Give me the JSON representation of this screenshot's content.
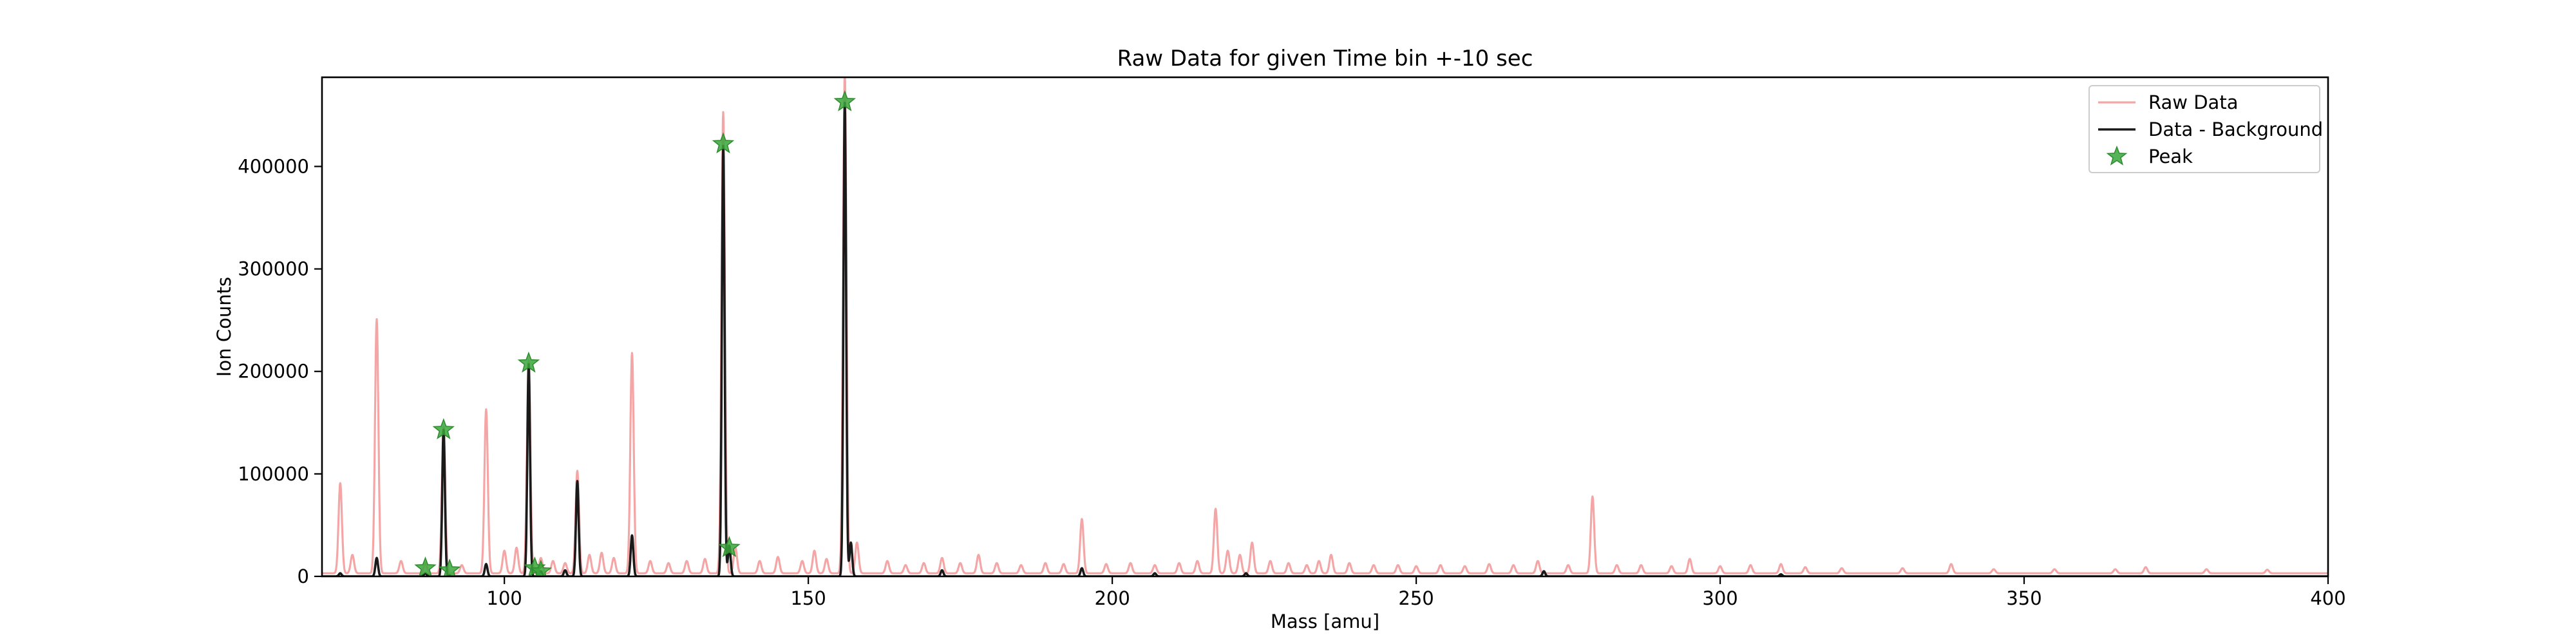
{
  "chart_data": {
    "type": "line",
    "title": "Raw Data for given Time bin +-10 sec",
    "xlabel": "Mass [amu]",
    "ylabel": "Ion Counts",
    "xlim": [
      70,
      400
    ],
    "ylim": [
      0,
      487000
    ],
    "xticks": [
      100,
      150,
      200,
      250,
      300,
      350,
      400
    ],
    "yticks": [
      0,
      100000,
      200000,
      300000,
      400000
    ],
    "grid": false,
    "legend_position": "top-right",
    "colors": {
      "raw": "#f4a6a6",
      "background_subtracted": "#1a1a1a",
      "peak": "#3aa63a"
    },
    "series": [
      {
        "name": "Raw Data",
        "style": "line",
        "baseline": 3000,
        "peaks": [
          [
            73,
            88000
          ],
          [
            75,
            18000
          ],
          [
            79,
            248000
          ],
          [
            83,
            12000
          ],
          [
            87,
            10000
          ],
          [
            90,
            143000
          ],
          [
            93,
            8000
          ],
          [
            97,
            160000
          ],
          [
            100,
            22000
          ],
          [
            102,
            25000
          ],
          [
            104,
            208000
          ],
          [
            106,
            15000
          ],
          [
            108,
            12000
          ],
          [
            110,
            10000
          ],
          [
            112,
            100000
          ],
          [
            114,
            18000
          ],
          [
            116,
            20000
          ],
          [
            118,
            15000
          ],
          [
            121,
            215000
          ],
          [
            124,
            12000
          ],
          [
            127,
            10000
          ],
          [
            130,
            12000
          ],
          [
            133,
            14000
          ],
          [
            136,
            450000
          ],
          [
            138,
            25000
          ],
          [
            142,
            12000
          ],
          [
            145,
            16000
          ],
          [
            149,
            12000
          ],
          [
            151,
            22000
          ],
          [
            153,
            14000
          ],
          [
            156,
            487000
          ],
          [
            158,
            30000
          ],
          [
            163,
            12000
          ],
          [
            166,
            8000
          ],
          [
            169,
            10000
          ],
          [
            172,
            15000
          ],
          [
            175,
            10000
          ],
          [
            178,
            18000
          ],
          [
            181,
            10000
          ],
          [
            185,
            8000
          ],
          [
            189,
            10000
          ],
          [
            192,
            9000
          ],
          [
            195,
            53000
          ],
          [
            199,
            9000
          ],
          [
            203,
            10000
          ],
          [
            207,
            8000
          ],
          [
            211,
            10000
          ],
          [
            214,
            12000
          ],
          [
            217,
            63000
          ],
          [
            219,
            22000
          ],
          [
            221,
            18000
          ],
          [
            223,
            30000
          ],
          [
            226,
            12000
          ],
          [
            229,
            10000
          ],
          [
            232,
            8000
          ],
          [
            234,
            12000
          ],
          [
            236,
            18000
          ],
          [
            239,
            10000
          ],
          [
            243,
            8000
          ],
          [
            247,
            8000
          ],
          [
            250,
            7000
          ],
          [
            254,
            8000
          ],
          [
            258,
            7000
          ],
          [
            262,
            9000
          ],
          [
            266,
            8000
          ],
          [
            270,
            12000
          ],
          [
            275,
            8000
          ],
          [
            279,
            75000
          ],
          [
            283,
            8000
          ],
          [
            287,
            8000
          ],
          [
            292,
            7000
          ],
          [
            295,
            14000
          ],
          [
            300,
            7000
          ],
          [
            305,
            8000
          ],
          [
            310,
            9000
          ],
          [
            314,
            6000
          ],
          [
            320,
            5000
          ],
          [
            330,
            5000
          ],
          [
            338,
            9000
          ],
          [
            345,
            4000
          ],
          [
            355,
            4000
          ],
          [
            365,
            4000
          ],
          [
            370,
            6000
          ],
          [
            380,
            4000
          ],
          [
            390,
            3500
          ]
        ]
      },
      {
        "name": "Data - Background",
        "style": "line",
        "baseline": 0,
        "peaks": [
          [
            73,
            3000
          ],
          [
            79,
            18000
          ],
          [
            87,
            3000
          ],
          [
            90,
            143000
          ],
          [
            97,
            12000
          ],
          [
            104,
            207000
          ],
          [
            106,
            5000
          ],
          [
            110,
            6000
          ],
          [
            112,
            93000
          ],
          [
            121,
            40000
          ],
          [
            136,
            420000
          ],
          [
            137,
            30000
          ],
          [
            156,
            462000
          ],
          [
            157,
            33000
          ],
          [
            172,
            6000
          ],
          [
            195,
            8000
          ],
          [
            207,
            3000
          ],
          [
            222,
            3000
          ],
          [
            271,
            5000
          ],
          [
            310,
            2000
          ]
        ]
      },
      {
        "name": "Peak",
        "style": "marker-star",
        "points": [
          [
            87,
            8000
          ],
          [
            90,
            143000
          ],
          [
            91,
            6000
          ],
          [
            104,
            208000
          ],
          [
            105,
            8000
          ],
          [
            106,
            5000
          ],
          [
            136,
            422000
          ],
          [
            137,
            28000
          ],
          [
            156,
            463000
          ]
        ]
      }
    ]
  }
}
